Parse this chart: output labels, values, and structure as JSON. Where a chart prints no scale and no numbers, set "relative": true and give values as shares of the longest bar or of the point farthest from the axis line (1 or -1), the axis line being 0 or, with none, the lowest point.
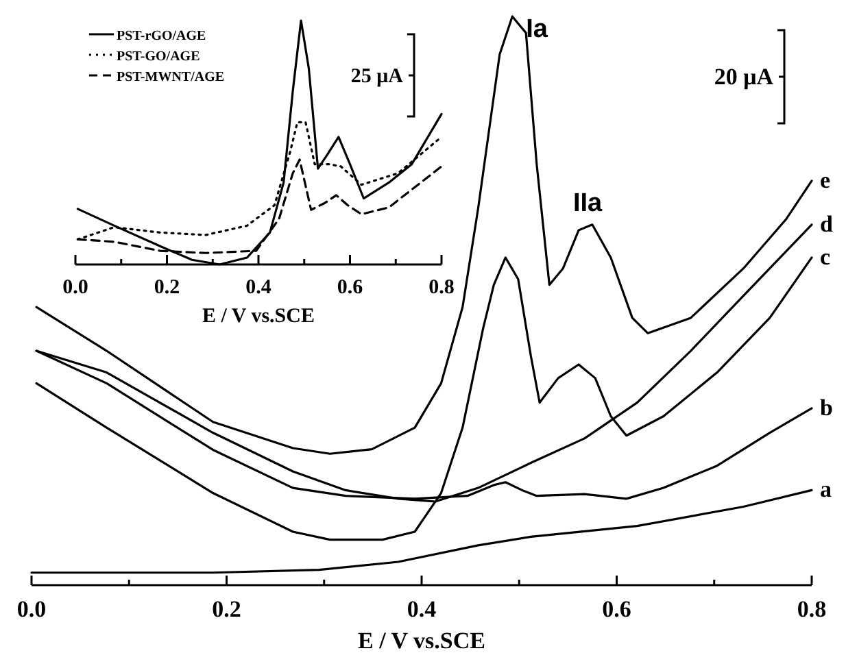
{
  "chart_data": [
    {
      "type": "line",
      "relative": true,
      "xlabel": "E / V vs.SCE",
      "xlim": [
        0,
        0.8
      ],
      "legend": false,
      "line_style": "solid",
      "annotations": [
        {
          "text": "Ia",
          "x": 0.493,
          "y": 1.0
        },
        {
          "text": "IIa",
          "x": 0.575,
          "y": 0.634
        },
        "20 μA"
      ],
      "xticks": [
        {
          "value": 0,
          "label": "0.0"
        },
        {
          "value": 0.1,
          "label": null
        },
        {
          "value": 0.2,
          "label": "0.2"
        },
        {
          "value": 0.3,
          "label": null
        },
        {
          "value": 0.4,
          "label": "0.4"
        },
        {
          "value": 0.5,
          "label": null
        },
        {
          "value": 0.6,
          "label": "0.6"
        },
        {
          "value": 0.7,
          "label": null
        },
        {
          "value": 0.8,
          "label": "0.8"
        }
      ],
      "series": [
        {
          "name": "e",
          "color": "#000000",
          "x": [
            0.005,
            0.077,
            0.186,
            0.268,
            0.306,
            0.349,
            0.393,
            0.42,
            0.442,
            0.458,
            0.48,
            0.493,
            0.507,
            0.518,
            0.531,
            0.545,
            0.561,
            0.575,
            0.594,
            0.616,
            0.632,
            0.676,
            0.73,
            0.774,
            0.8
          ],
          "values": [
            0.489,
            0.412,
            0.287,
            0.241,
            0.231,
            0.239,
            0.277,
            0.355,
            0.489,
            0.663,
            0.933,
            1.0,
            0.971,
            0.74,
            0.528,
            0.557,
            0.624,
            0.634,
            0.576,
            0.47,
            0.443,
            0.47,
            0.557,
            0.644,
            0.711
          ]
        },
        {
          "name": "d",
          "color": "#000000",
          "x": [
            0.005,
            0.077,
            0.186,
            0.268,
            0.322,
            0.376,
            0.414,
            0.458,
            0.512,
            0.567,
            0.621,
            0.676,
            0.73,
            0.8
          ],
          "values": [
            0.412,
            0.374,
            0.268,
            0.2,
            0.167,
            0.152,
            0.147,
            0.171,
            0.215,
            0.258,
            0.321,
            0.412,
            0.509,
            0.634
          ]
        },
        {
          "name": "c",
          "color": "#000000",
          "x": [
            0.005,
            0.077,
            0.186,
            0.268,
            0.306,
            0.36,
            0.393,
            0.42,
            0.442,
            0.463,
            0.474,
            0.486,
            0.499,
            0.512,
            0.521,
            0.54,
            0.561,
            0.578,
            0.594,
            0.61,
            0.648,
            0.703,
            0.757,
            0.8
          ],
          "values": [
            0.355,
            0.277,
            0.162,
            0.094,
            0.08,
            0.08,
            0.094,
            0.162,
            0.277,
            0.451,
            0.528,
            0.576,
            0.538,
            0.403,
            0.321,
            0.364,
            0.388,
            0.364,
            0.297,
            0.263,
            0.297,
            0.374,
            0.47,
            0.576
          ]
        },
        {
          "name": "b",
          "color": "#000000",
          "x": [
            0.005,
            0.077,
            0.186,
            0.268,
            0.322,
            0.393,
            0.447,
            0.474,
            0.486,
            0.503,
            0.518,
            0.567,
            0.61,
            0.648,
            0.703,
            0.757,
            0.8
          ],
          "values": [
            0.412,
            0.355,
            0.238,
            0.171,
            0.157,
            0.152,
            0.157,
            0.176,
            0.181,
            0.167,
            0.157,
            0.16,
            0.152,
            0.171,
            0.21,
            0.268,
            0.311
          ]
        },
        {
          "name": "a",
          "color": "#000000",
          "x": [
            0,
            0.186,
            0.295,
            0.376,
            0.458,
            0.512,
            0.621,
            0.73,
            0.8
          ],
          "values": [
            0.022,
            0.022,
            0.027,
            0.041,
            0.07,
            0.085,
            0.104,
            0.138,
            0.167
          ]
        }
      ]
    },
    {
      "type": "line",
      "relative": true,
      "xlabel": "E / V vs.SCE",
      "xlim": [
        0,
        0.8
      ],
      "legend": "top left",
      "annotations": [
        "25 μA"
      ],
      "xticks": [
        {
          "value": 0,
          "label": "0.0"
        },
        {
          "value": 0.1,
          "label": null
        },
        {
          "value": 0.2,
          "label": "0.2"
        },
        {
          "value": 0.3,
          "label": null
        },
        {
          "value": 0.4,
          "label": "0.4"
        },
        {
          "value": 0.5,
          "label": null
        },
        {
          "value": 0.6,
          "label": "0.6"
        },
        {
          "value": 0.7,
          "label": null
        },
        {
          "value": 0.8,
          "label": "0.8"
        }
      ],
      "series": [
        {
          "name": "PST-rGO/AGE",
          "color": "#000000",
          "line_style": "solid",
          "x": [
            0.005,
            0.085,
            0.185,
            0.255,
            0.315,
            0.375,
            0.425,
            0.455,
            0.475,
            0.493,
            0.51,
            0.53,
            0.55,
            0.575,
            0.6,
            0.63,
            0.685,
            0.735,
            0.8
          ],
          "values": [
            0.228,
            0.159,
            0.075,
            0.019,
            0,
            0.028,
            0.131,
            0.336,
            0.71,
            1.0,
            0.804,
            0.393,
            0.449,
            0.523,
            0.411,
            0.271,
            0.336,
            0.411,
            0.617
          ]
        },
        {
          "name": "PST-GO/AGE",
          "color": "#000000",
          "line_style": "dotted",
          "x": [
            0.005,
            0.085,
            0.185,
            0.285,
            0.375,
            0.435,
            0.47,
            0.485,
            0.503,
            0.523,
            0.555,
            0.58,
            0.625,
            0.705,
            0.8
          ],
          "values": [
            0.103,
            0.153,
            0.131,
            0.121,
            0.159,
            0.243,
            0.467,
            0.583,
            0.583,
            0.411,
            0.411,
            0.402,
            0.327,
            0.374,
            0.523
          ]
        },
        {
          "name": "PST-MWNT/AGE",
          "color": "#000000",
          "line_style": "dashed",
          "x": [
            0.005,
            0.085,
            0.185,
            0.285,
            0.395,
            0.445,
            0.475,
            0.49,
            0.515,
            0.545,
            0.57,
            0.595,
            0.625,
            0.685,
            0.8
          ],
          "values": [
            0.103,
            0.093,
            0.056,
            0.047,
            0.056,
            0.187,
            0.374,
            0.43,
            0.224,
            0.252,
            0.284,
            0.243,
            0.206,
            0.234,
            0.402
          ]
        }
      ]
    }
  ]
}
